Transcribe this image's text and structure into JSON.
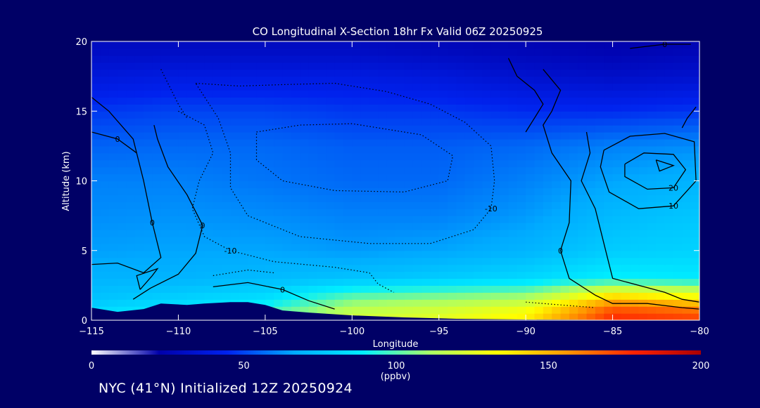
{
  "chart_data": {
    "type": "heatmap",
    "title": "CO Longitudinal X-Section 18hr  Fx Valid 06Z 20250925",
    "xlabel": "Longitude",
    "ylabel": "Altitude (km)",
    "xlim": [
      -115,
      -80
    ],
    "ylim": [
      0,
      20
    ],
    "x_ticks": [
      "-115",
      "-110",
      "-105",
      "-100",
      "-95",
      "-90",
      "-85",
      "-80"
    ],
    "y_ticks": [
      "0",
      "5",
      "10",
      "15",
      "20"
    ],
    "x_tick_values": [
      -115,
      -110,
      -105,
      -100,
      -95,
      -90,
      -85,
      -80
    ],
    "y_tick_values": [
      0,
      5,
      10,
      15,
      20
    ],
    "longitudes": [
      -115,
      -110,
      -105,
      -100,
      -95,
      -90,
      -85,
      -80
    ],
    "altitudes_km": [
      0.5,
      1.5,
      3,
      5,
      7.5,
      10,
      12.5,
      15,
      17.5,
      19.5
    ],
    "co_ppbv": [
      [
        85,
        90,
        100,
        120,
        125,
        135,
        175,
        170
      ],
      [
        75,
        80,
        85,
        105,
        110,
        115,
        150,
        140
      ],
      [
        70,
        70,
        72,
        75,
        78,
        82,
        90,
        88
      ],
      [
        65,
        66,
        66,
        64,
        66,
        70,
        78,
        80
      ],
      [
        62,
        63,
        62,
        60,
        60,
        64,
        72,
        76
      ],
      [
        60,
        60,
        58,
        56,
        56,
        60,
        66,
        70
      ],
      [
        55,
        56,
        56,
        54,
        54,
        56,
        60,
        62
      ],
      [
        48,
        50,
        50,
        48,
        48,
        46,
        46,
        48
      ],
      [
        38,
        40,
        40,
        40,
        38,
        34,
        32,
        34
      ],
      [
        30,
        30,
        30,
        30,
        28,
        26,
        24,
        26
      ]
    ],
    "terrain_km": [
      [
        -115,
        0.9
      ],
      [
        -113.5,
        0.6
      ],
      [
        -112,
        0.8
      ],
      [
        -111,
        1.2
      ],
      [
        -109.5,
        1.1
      ],
      [
        -108.5,
        1.2
      ],
      [
        -107,
        1.3
      ],
      [
        -106,
        1.3
      ],
      [
        -105,
        1.1
      ],
      [
        -104,
        0.7
      ],
      [
        -102.5,
        0.55
      ],
      [
        -100,
        0.35
      ],
      [
        -97,
        0.2
      ],
      [
        -94,
        0.1
      ],
      [
        -90,
        0.05
      ],
      [
        -80,
        0.0
      ]
    ],
    "contours": [
      {
        "label": "0",
        "points": [
          [
            -115,
            4.0
          ],
          [
            -113.5,
            4.1
          ],
          [
            -112,
            3.4
          ],
          [
            -111,
            4.5
          ],
          [
            -111.5,
            7
          ],
          [
            -112,
            10
          ],
          [
            -112.6,
            13
          ],
          [
            -114,
            15
          ],
          [
            -115,
            16
          ]
        ]
      },
      {
        "label": "0",
        "points": [
          [
            -115,
            13.5
          ],
          [
            -113.5,
            13
          ],
          [
            -112.4,
            12
          ]
        ]
      },
      {
        "label": "0",
        "points": [
          [
            -112.6,
            1.5
          ],
          [
            -111.6,
            2.3
          ],
          [
            -110,
            3.3
          ],
          [
            -109,
            4.8
          ],
          [
            -108.6,
            6.8
          ],
          [
            -109.5,
            9
          ],
          [
            -110.6,
            11
          ],
          [
            -111.2,
            13
          ],
          [
            -111.4,
            14
          ]
        ]
      },
      {
        "label": "",
        "points": [
          [
            -112.2,
            2.2
          ],
          [
            -111.5,
            3.2
          ],
          [
            -111.2,
            3.7
          ],
          [
            -112.4,
            3.2
          ],
          [
            -112.2,
            2.2
          ]
        ]
      },
      {
        "label": "0",
        "points": [
          [
            -108,
            2.4
          ],
          [
            -106,
            2.7
          ],
          [
            -104,
            2.2
          ],
          [
            -102.5,
            1.4
          ],
          [
            -101,
            0.8
          ]
        ]
      },
      {
        "label": "0",
        "points": [
          [
            -89,
            18
          ],
          [
            -88,
            16.5
          ],
          [
            -88.5,
            15
          ],
          [
            -89,
            14
          ],
          [
            -88.5,
            12
          ],
          [
            -87.4,
            10
          ],
          [
            -87.5,
            7
          ],
          [
            -88,
            5
          ],
          [
            -87.5,
            3
          ],
          [
            -86,
            1.8
          ],
          [
            -85,
            1.2
          ],
          [
            -83,
            1.2
          ],
          [
            -81,
            0.9
          ],
          [
            -80,
            0.8
          ]
        ]
      },
      {
        "label": "",
        "points": [
          [
            -91,
            18.8
          ],
          [
            -90.5,
            17.5
          ],
          [
            -89.5,
            16.5
          ],
          [
            -89,
            15.5
          ],
          [
            -89.5,
            14.5
          ],
          [
            -90,
            13.5
          ]
        ]
      },
      {
        "label": "",
        "points": [
          [
            -86.5,
            13.5
          ],
          [
            -86.3,
            12
          ],
          [
            -86.8,
            10
          ],
          [
            -86,
            8
          ],
          [
            -85.5,
            5.5
          ],
          [
            -85,
            3
          ],
          [
            -82,
            2.0
          ],
          [
            -81,
            1.5
          ],
          [
            -80,
            1.3
          ]
        ]
      },
      {
        "label": "10",
        "points": [
          [
            -85.5,
            12.2
          ],
          [
            -84,
            13.2
          ],
          [
            -82,
            13.4
          ],
          [
            -80.3,
            12.8
          ],
          [
            -80.2,
            10
          ],
          [
            -81.5,
            8.2
          ],
          [
            -83.5,
            8.0
          ],
          [
            -85.2,
            9.2
          ],
          [
            -85.7,
            11
          ],
          [
            -85.5,
            12.2
          ]
        ]
      },
      {
        "label": "20",
        "points": [
          [
            -84.3,
            11.2
          ],
          [
            -83.2,
            12.0
          ],
          [
            -81.5,
            11.9
          ],
          [
            -80.8,
            10.8
          ],
          [
            -81.5,
            9.5
          ],
          [
            -83,
            9.4
          ],
          [
            -84.3,
            10.3
          ],
          [
            -84.3,
            11.2
          ]
        ]
      },
      {
        "label": "",
        "points": [
          [
            -82.5,
            11.5
          ],
          [
            -81.5,
            11.1
          ],
          [
            -82.3,
            10.7
          ],
          [
            -82.5,
            11.5
          ]
        ]
      },
      {
        "label": "",
        "points": [
          [
            -80.2,
            15.3
          ],
          [
            -80.7,
            14.5
          ],
          [
            -81,
            13.8
          ]
        ]
      },
      {
        "label": "0",
        "points": [
          [
            -84,
            19.5
          ],
          [
            -82,
            19.8
          ],
          [
            -80.5,
            19.8
          ]
        ]
      },
      {
        "label": "-10",
        "points": [
          [
            -110,
            15
          ],
          [
            -108.5,
            14
          ],
          [
            -108,
            12
          ],
          [
            -108.8,
            10
          ],
          [
            -109.2,
            8
          ],
          [
            -108.5,
            6
          ],
          [
            -107,
            5
          ],
          [
            -104.5,
            4.2
          ],
          [
            -101,
            3.8
          ],
          [
            -99,
            3.4
          ],
          [
            -98.5,
            2.6
          ],
          [
            -97.6,
            2.0
          ]
        ],
        "dotted": true
      },
      {
        "label": "-10",
        "points": [
          [
            -109,
            17
          ],
          [
            -106.5,
            16.8
          ],
          [
            -104,
            16.9
          ],
          [
            -101,
            17.0
          ],
          [
            -98,
            16.4
          ],
          [
            -95.5,
            15.5
          ],
          [
            -93.5,
            14.2
          ],
          [
            -92,
            12.5
          ],
          [
            -91.8,
            10
          ],
          [
            -92,
            8.0
          ],
          [
            -93,
            6.5
          ],
          [
            -95.5,
            5.5
          ],
          [
            -99,
            5.5
          ],
          [
            -103,
            6.0
          ],
          [
            -106,
            7.5
          ],
          [
            -107,
            9.5
          ],
          [
            -107,
            12
          ],
          [
            -107.7,
            14.5
          ],
          [
            -109,
            17
          ]
        ],
        "dotted": true
      },
      {
        "label": "",
        "points": [
          [
            -105.5,
            13.5
          ],
          [
            -103,
            14.0
          ],
          [
            -100,
            14.1
          ],
          [
            -96,
            13.3
          ],
          [
            -94.2,
            11.8
          ],
          [
            -94.5,
            10
          ],
          [
            -97,
            9.2
          ],
          [
            -101,
            9.3
          ],
          [
            -104,
            10.0
          ],
          [
            -105.5,
            11.5
          ],
          [
            -105.5,
            13.5
          ]
        ],
        "dotted": true
      },
      {
        "label": "",
        "points": [
          [
            -111,
            18
          ],
          [
            -110,
            15.5
          ],
          [
            -109.5,
            14.5
          ]
        ],
        "dotted": true
      },
      {
        "label": "",
        "points": [
          [
            -108,
            3.2
          ],
          [
            -106,
            3.6
          ],
          [
            -104.5,
            3.4
          ]
        ],
        "dotted": true
      },
      {
        "label": "",
        "points": [
          [
            -90,
            1.3
          ],
          [
            -88,
            1.1
          ],
          [
            -86,
            0.9
          ]
        ],
        "dotted": true
      }
    ],
    "colorbar": {
      "ticks": [
        "0",
        "50",
        "100",
        "150",
        "200"
      ],
      "tick_values": [
        0,
        50,
        100,
        150,
        200
      ],
      "unit": "(ppbv)",
      "range": [
        0,
        200
      ],
      "colors": [
        "#ffffff",
        "#0000aa",
        "#0022ee",
        "#00aaff",
        "#00eeff",
        "#aaff66",
        "#ffff00",
        "#ff9900",
        "#ff2200",
        "#aa0000"
      ]
    }
  },
  "footer": {
    "text": "NYC (41°N) Initialized 12Z 20250924"
  }
}
